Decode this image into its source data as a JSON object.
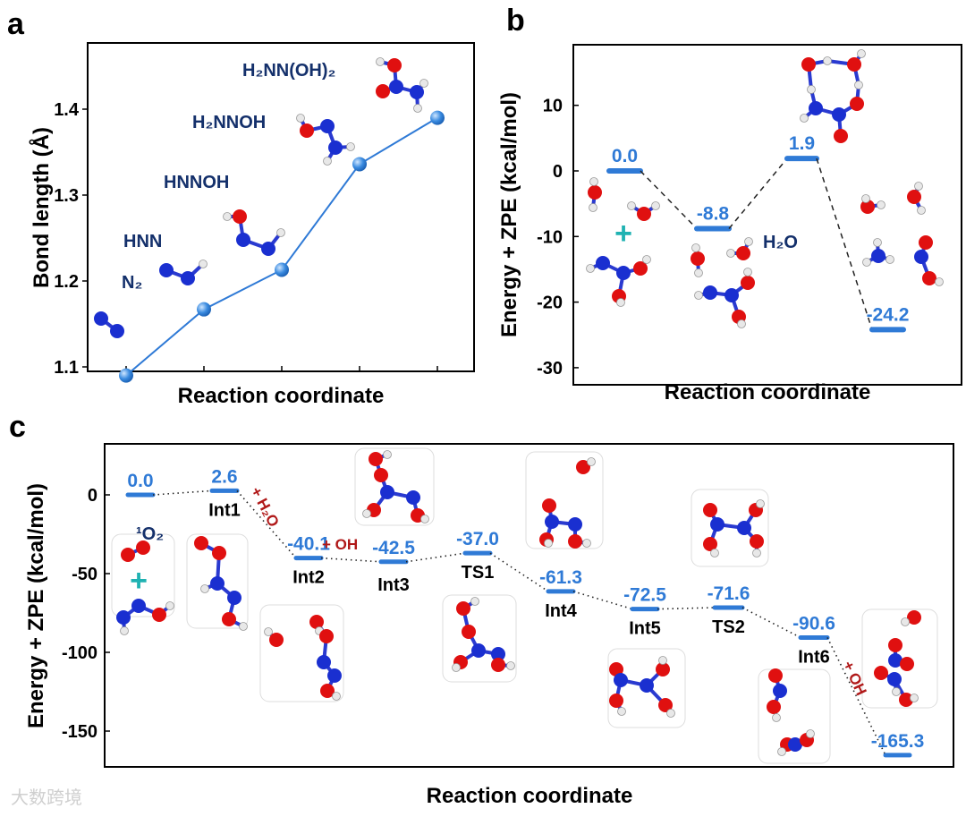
{
  "chart_data": [
    {
      "panel": "a",
      "type": "line",
      "xlabel": "Reaction coordinate",
      "ylabel": "Bond length (Å)",
      "yticks": [
        "1.1",
        "1.2",
        "1.3",
        "1.4"
      ],
      "ylim": [
        1.075,
        1.475
      ],
      "categories": [
        "N₂",
        "HNN",
        "HNNOH",
        "H₂NNOH",
        "H₂NN(OH)₂"
      ],
      "values": [
        1.09,
        1.167,
        1.213,
        1.336,
        1.39
      ],
      "color": "#2f7ad6"
    },
    {
      "panel": "b",
      "type": "line",
      "subtype": "energy-profile",
      "xlabel": "Reaction coordinate",
      "ylabel": "Energy + ZPE (kcal/mol)",
      "yticks": [
        "10",
        "0",
        "-10",
        "-20",
        "-30"
      ],
      "ylim": [
        -32,
        17.5
      ],
      "levels": [
        {
          "label": "0.0",
          "value": 0.0
        },
        {
          "label": "-8.8",
          "value": -8.8
        },
        {
          "label": "1.9",
          "value": 1.9
        },
        {
          "label": "-24.2",
          "value": -24.2
        }
      ],
      "annotations": [
        "H₂O"
      ],
      "color": "#2f7ad6"
    },
    {
      "panel": "c",
      "type": "line",
      "subtype": "energy-profile",
      "xlabel": "Reaction coordinate",
      "ylabel": "Energy + ZPE (kcal/mol)",
      "yticks": [
        "0",
        "-50",
        "-100",
        "-150"
      ],
      "ylim": [
        -172,
        31
      ],
      "levels": [
        {
          "label": "0.0",
          "value": 0.0,
          "state": ""
        },
        {
          "label": "2.6",
          "value": 2.6,
          "state": "Int1"
        },
        {
          "label": "-40.1",
          "value": -40.1,
          "state": "Int2"
        },
        {
          "label": "-42.5",
          "value": -42.5,
          "state": "Int3"
        },
        {
          "label": "-37.0",
          "value": -37.0,
          "state": "TS1"
        },
        {
          "label": "-61.3",
          "value": -61.3,
          "state": "Int4"
        },
        {
          "label": "-72.5",
          "value": -72.5,
          "state": "Int5"
        },
        {
          "label": "-71.6",
          "value": -71.6,
          "state": "TS2"
        },
        {
          "label": "-90.6",
          "value": -90.6,
          "state": "Int6"
        },
        {
          "label": "-165.3",
          "value": -165.3,
          "state": ""
        }
      ],
      "annotations": {
        "singlet_o2": "¹O₂",
        "plus_h2o": "+ H₂O",
        "plus_oh_1": "+ OH",
        "plus_oh_2": "+ OH"
      },
      "color": "#2f7ad6"
    }
  ],
  "panels": {
    "a": "a",
    "b": "b",
    "c": "c"
  },
  "watermark": "大数跨境"
}
